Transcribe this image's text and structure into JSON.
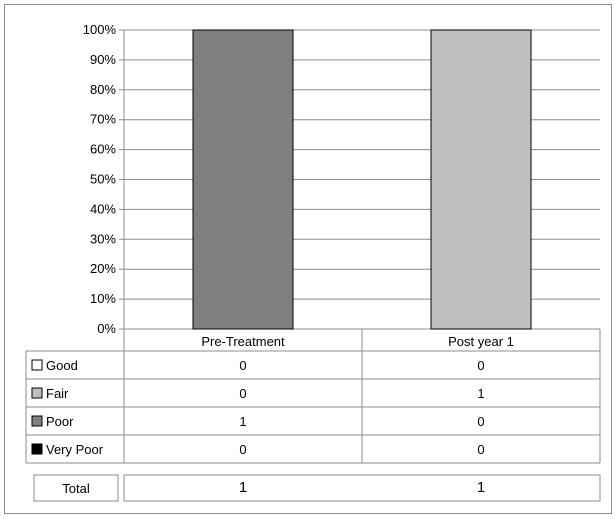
{
  "chart_data": {
    "type": "bar",
    "stacked": true,
    "percent": true,
    "categories": [
      "Pre-Treatment",
      "Post year 1"
    ],
    "series": [
      {
        "name": "Good",
        "values": [
          0,
          0
        ],
        "color": "#ffffff"
      },
      {
        "name": "Fair",
        "values": [
          0,
          1
        ],
        "color": "#bfbfbf"
      },
      {
        "name": "Poor",
        "values": [
          1,
          0
        ],
        "color": "#808080"
      },
      {
        "name": "Very Poor",
        "values": [
          0,
          0
        ],
        "color": "#000000"
      }
    ],
    "yticks": [
      "0%",
      "10%",
      "20%",
      "30%",
      "40%",
      "50%",
      "60%",
      "70%",
      "80%",
      "90%",
      "100%"
    ],
    "ylim": [
      0,
      100
    ],
    "grid": true,
    "legend": "data-table-left",
    "total_label": "Total",
    "totals": [
      1,
      1
    ]
  }
}
